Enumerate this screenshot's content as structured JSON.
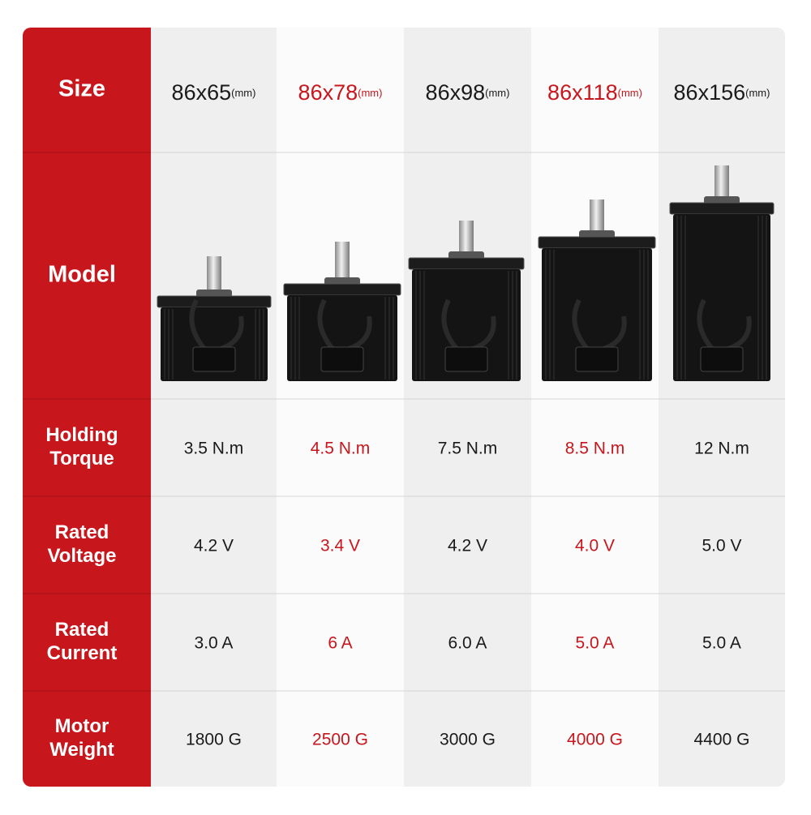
{
  "row_labels": {
    "size": [
      "Size"
    ],
    "model": [
      "Model"
    ],
    "torque": [
      "Holding",
      "Torque"
    ],
    "voltage": [
      "Rated",
      "Voltage"
    ],
    "current": [
      "Rated",
      "Current"
    ],
    "weight": [
      "Motor",
      "Weight"
    ]
  },
  "columns": [
    {
      "size": "86x65",
      "unit": "(mm)",
      "torque": "3.5 N.m",
      "voltage": "4.2 V",
      "current": "3.0 A",
      "weight": "1800 G"
    },
    {
      "size": "86x78",
      "unit": "(mm)",
      "torque": "4.5 N.m",
      "voltage": "3.4 V",
      "current": "6 A",
      "weight": "2500 G"
    },
    {
      "size": "86x98",
      "unit": "(mm)",
      "torque": "7.5 N.m",
      "voltage": "4.2 V",
      "current": "6.0 A",
      "weight": "3000 G"
    },
    {
      "size": "86x118",
      "unit": "(mm)",
      "torque": "8.5 N.m",
      "voltage": "4.0 V",
      "current": "5.0 A",
      "weight": "4000 G"
    },
    {
      "size": "86x156",
      "unit": "(mm)",
      "torque": "12 N.m",
      "voltage": "5.0 V",
      "current": "5.0 A",
      "weight": "4400 G"
    }
  ]
}
